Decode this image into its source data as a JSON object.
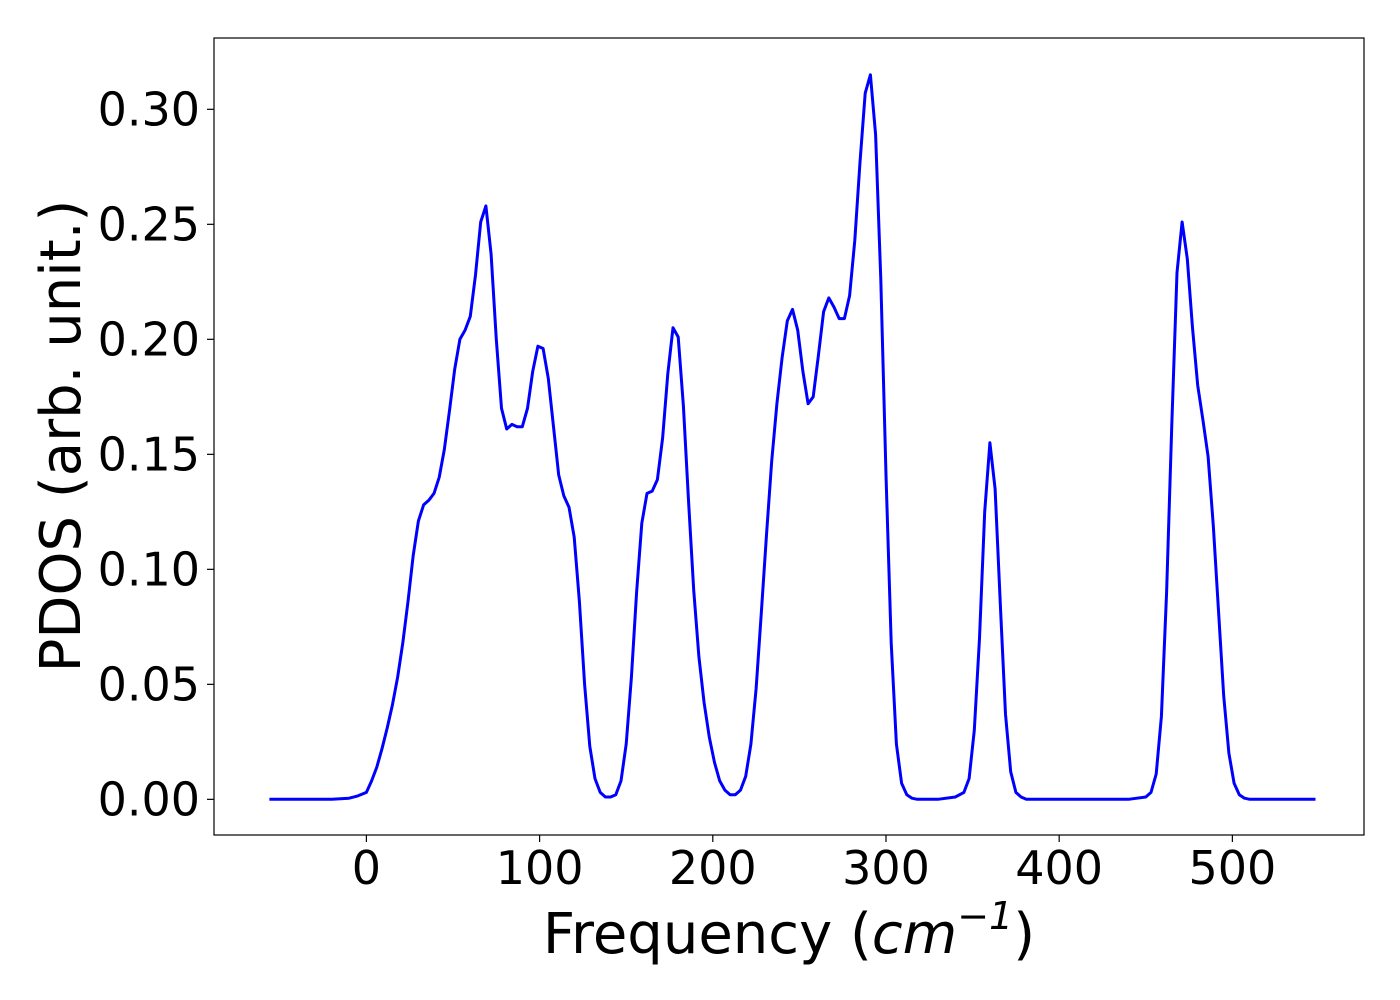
{
  "chart_data": {
    "type": "line",
    "title": "",
    "xlabel_prefix": "Frequency (",
    "xlabel_unit_base": "cm",
    "xlabel_unit_exp": "−1",
    "xlabel_suffix": ")",
    "ylabel": "PDOS (arb. unit.)",
    "xlim": [
      -88,
      576
    ],
    "ylim": [
      -0.0155,
      0.331
    ],
    "xticks": [
      0,
      100,
      200,
      300,
      400,
      500
    ],
    "xtick_labels": [
      "0",
      "100",
      "200",
      "300",
      "400",
      "500"
    ],
    "yticks": [
      0.0,
      0.05,
      0.1,
      0.15,
      0.2,
      0.25,
      0.3
    ],
    "ytick_labels": [
      "0.00",
      "0.05",
      "0.10",
      "0.15",
      "0.20",
      "0.25",
      "0.30"
    ],
    "grid": false,
    "line_color": "#0000ff",
    "series": [
      {
        "x": [
          -56,
          -20,
          -10,
          -5,
          0,
          3,
          6,
          9,
          12,
          15,
          18,
          21,
          24,
          27,
          30,
          33,
          36,
          39,
          42,
          45,
          48,
          51,
          54,
          57,
          60,
          63,
          66,
          69,
          72,
          75,
          78,
          81,
          84,
          87,
          90,
          93,
          96,
          99,
          102,
          105,
          108,
          111,
          114,
          117,
          120,
          123,
          126,
          129,
          132,
          135,
          138,
          141,
          144,
          147,
          150,
          153,
          156,
          159,
          162,
          165,
          168,
          171,
          174,
          177,
          180,
          183,
          186,
          189,
          192,
          195,
          198,
          201,
          204,
          207,
          210,
          213,
          216,
          219,
          222,
          225,
          228,
          231,
          234,
          237,
          240,
          243,
          246,
          249,
          252,
          255,
          258,
          261,
          264,
          267,
          270,
          273,
          276,
          279,
          282,
          285,
          288,
          291,
          294,
          297,
          300,
          303,
          306,
          309,
          312,
          315,
          318,
          321,
          324,
          330,
          340,
          345,
          348,
          351,
          354,
          357,
          360,
          363,
          366,
          369,
          372,
          375,
          378,
          381,
          385,
          390,
          400,
          420,
          440,
          450,
          453,
          456,
          459,
          462,
          465,
          468,
          471,
          474,
          477,
          480,
          483,
          486,
          489,
          492,
          495,
          498,
          501,
          504,
          507,
          510,
          515,
          530,
          548
        ],
        "y": [
          0.0,
          0.0,
          0.0005,
          0.0015,
          0.003,
          0.008,
          0.014,
          0.022,
          0.031,
          0.041,
          0.053,
          0.068,
          0.086,
          0.106,
          0.121,
          0.128,
          0.13,
          0.133,
          0.14,
          0.152,
          0.169,
          0.187,
          0.2,
          0.204,
          0.21,
          0.228,
          0.251,
          0.258,
          0.237,
          0.2,
          0.17,
          0.161,
          0.163,
          0.162,
          0.162,
          0.17,
          0.186,
          0.197,
          0.196,
          0.183,
          0.162,
          0.141,
          0.132,
          0.127,
          0.114,
          0.086,
          0.05,
          0.023,
          0.009,
          0.003,
          0.001,
          0.001,
          0.002,
          0.008,
          0.024,
          0.053,
          0.09,
          0.12,
          0.133,
          0.134,
          0.139,
          0.157,
          0.185,
          0.205,
          0.201,
          0.171,
          0.13,
          0.091,
          0.062,
          0.042,
          0.027,
          0.016,
          0.008,
          0.004,
          0.002,
          0.002,
          0.004,
          0.01,
          0.024,
          0.048,
          0.081,
          0.115,
          0.147,
          0.172,
          0.192,
          0.208,
          0.213,
          0.204,
          0.186,
          0.172,
          0.175,
          0.193,
          0.212,
          0.218,
          0.214,
          0.209,
          0.209,
          0.219,
          0.243,
          0.277,
          0.307,
          0.315,
          0.289,
          0.226,
          0.141,
          0.068,
          0.024,
          0.007,
          0.002,
          0.0005,
          0.0,
          0.0,
          0.0,
          0.0,
          0.001,
          0.003,
          0.009,
          0.03,
          0.07,
          0.125,
          0.155,
          0.135,
          0.085,
          0.037,
          0.012,
          0.003,
          0.001,
          0.0,
          0.0,
          0.0,
          0.0,
          0.0,
          0.0,
          0.001,
          0.003,
          0.011,
          0.036,
          0.09,
          0.163,
          0.229,
          0.251,
          0.235,
          0.205,
          0.18,
          0.165,
          0.149,
          0.119,
          0.082,
          0.045,
          0.02,
          0.007,
          0.002,
          0.0005,
          0.0,
          0.0,
          0.0,
          0.0
        ]
      }
    ]
  }
}
